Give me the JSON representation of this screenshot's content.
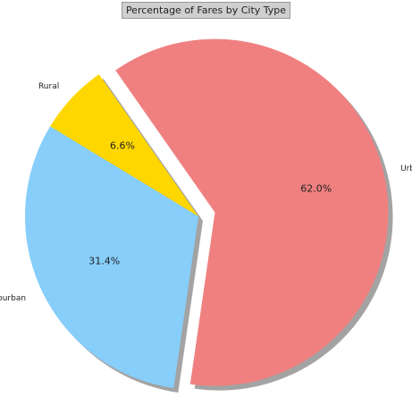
{
  "chart_data": {
    "type": "pie",
    "title": "Percentage of Fares by City Type",
    "slices": [
      {
        "label": "Rural",
        "pct_label": "6.6%",
        "value": 6.6,
        "color": "#FFD700",
        "explode": false
      },
      {
        "label": "Suburban",
        "pct_label": "31.4%",
        "value": 31.4,
        "color": "#87CEFA",
        "explode": false
      },
      {
        "label": "Urban",
        "pct_label": "62.0%",
        "value": 62.0,
        "color": "#F08080",
        "explode": true
      }
    ],
    "start_angle_deg": 125,
    "direction": "counterclockwise",
    "shadow": true,
    "legend": "none"
  }
}
